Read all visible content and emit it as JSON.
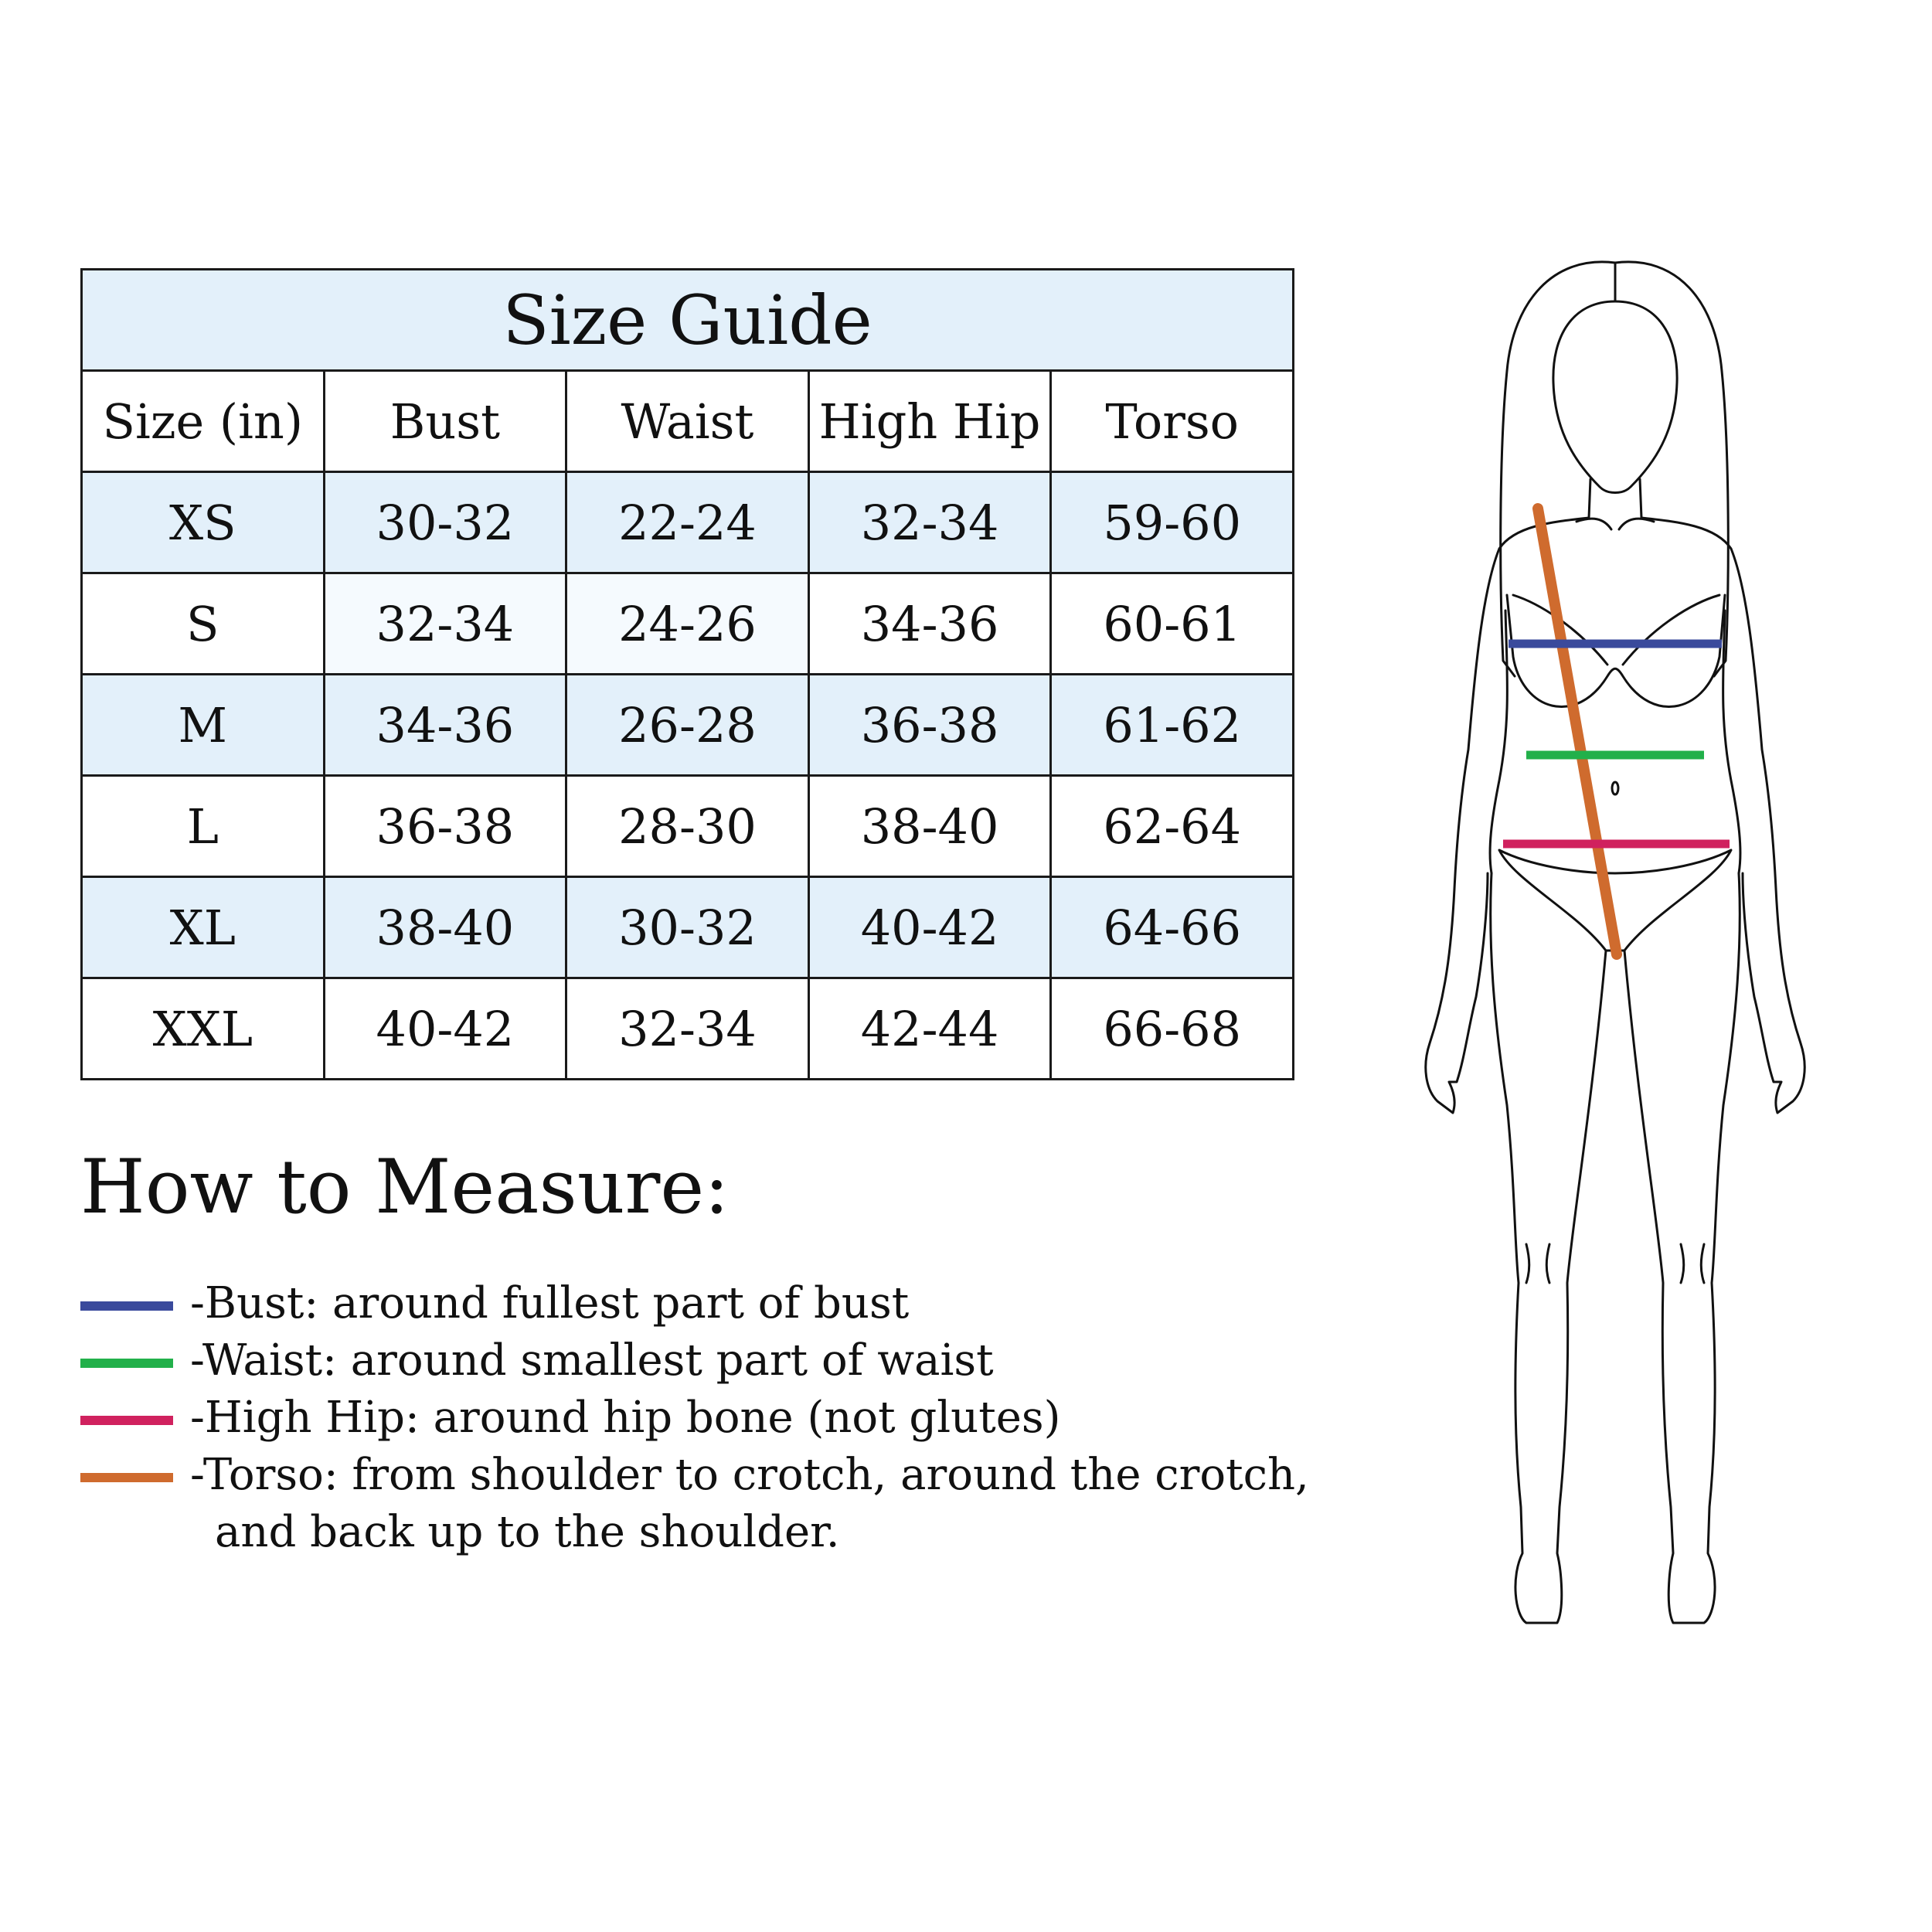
{
  "table": {
    "title": "Size Guide",
    "headers": [
      "Size (in)",
      "Bust",
      "Waist",
      "High Hip",
      "Torso"
    ],
    "rows": [
      [
        "XS",
        "30-32",
        "22-24",
        "32-34",
        "59-60"
      ],
      [
        "S",
        "32-34",
        "24-26",
        "34-36",
        "60-61"
      ],
      [
        "M",
        "34-36",
        "26-28",
        "36-38",
        "61-62"
      ],
      [
        "L",
        "36-38",
        "28-30",
        "38-40",
        "62-64"
      ],
      [
        "XL",
        "38-40",
        "30-32",
        "40-42",
        "64-66"
      ],
      [
        "XXL",
        "40-42",
        "32-34",
        "42-44",
        "66-68"
      ]
    ],
    "shaded_color": "#e3f0fa"
  },
  "measure": {
    "title": "How to Measure:",
    "items": [
      {
        "color": "#3a4a9c",
        "text": "-Bust: around fullest part of bust"
      },
      {
        "color": "#22b04a",
        "text": "-Waist: around smallest part of waist"
      },
      {
        "color": "#d0215e",
        "text": "-High Hip: around hip bone (not glutes)"
      },
      {
        "color": "#cf6b2e",
        "text": "-Torso: from shoulder to crotch, around the crotch,",
        "continuation": "and back up to the shoulder."
      }
    ]
  }
}
